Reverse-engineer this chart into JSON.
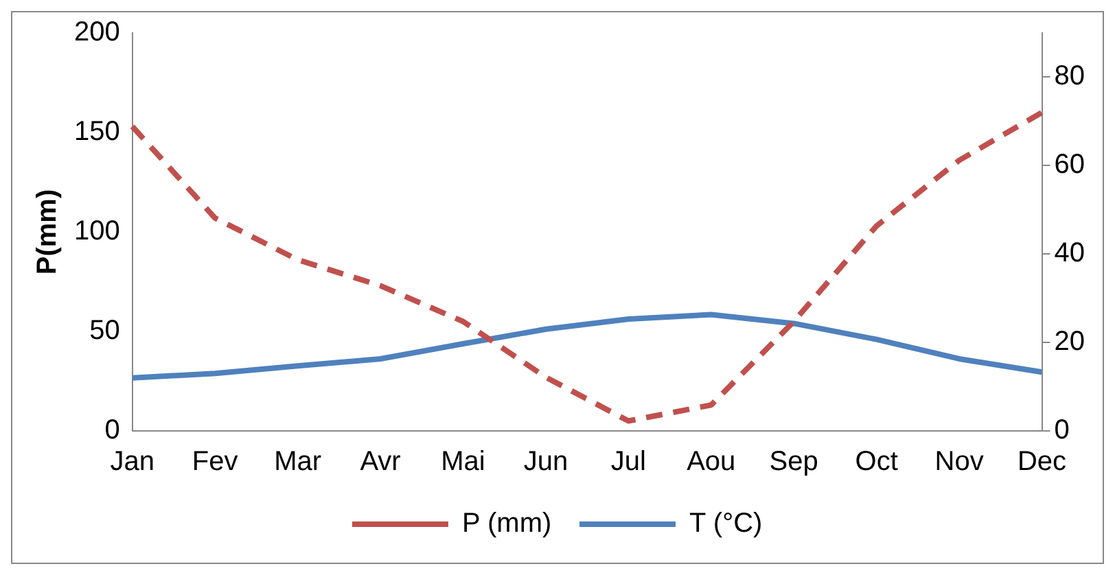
{
  "chart_data": {
    "type": "line",
    "ylabel": "P(mm)",
    "categories": [
      "Jan",
      "Fev",
      "Mar",
      "Avr",
      "Mai",
      "Jun",
      "Jul",
      "Aou",
      "Sep",
      "Oct",
      "Nov",
      "Dec"
    ],
    "series": [
      {
        "name": "P (mm)",
        "color": "#c0504d",
        "line_style": "dashed",
        "values": [
          153,
          107,
          86,
          73,
          55,
          27,
          5,
          13,
          55,
          103,
          136,
          160
        ]
      },
      {
        "name": "T (°C)",
        "color": "#4f81bd",
        "line_style": "solid",
        "axis": "y2",
        "values": [
          12,
          13,
          14.7,
          16.3,
          19.7,
          23,
          25.3,
          26.3,
          24.3,
          20.7,
          16.3,
          13.3
        ]
      }
    ],
    "ylim": [
      0,
      200
    ],
    "yticks": [
      0,
      50,
      100,
      150,
      200
    ],
    "y2lim": [
      0,
      90
    ],
    "y2ticks": [
      0,
      20,
      40,
      60,
      80
    ],
    "grid": false,
    "legend": "bottom",
    "marker": "none"
  }
}
